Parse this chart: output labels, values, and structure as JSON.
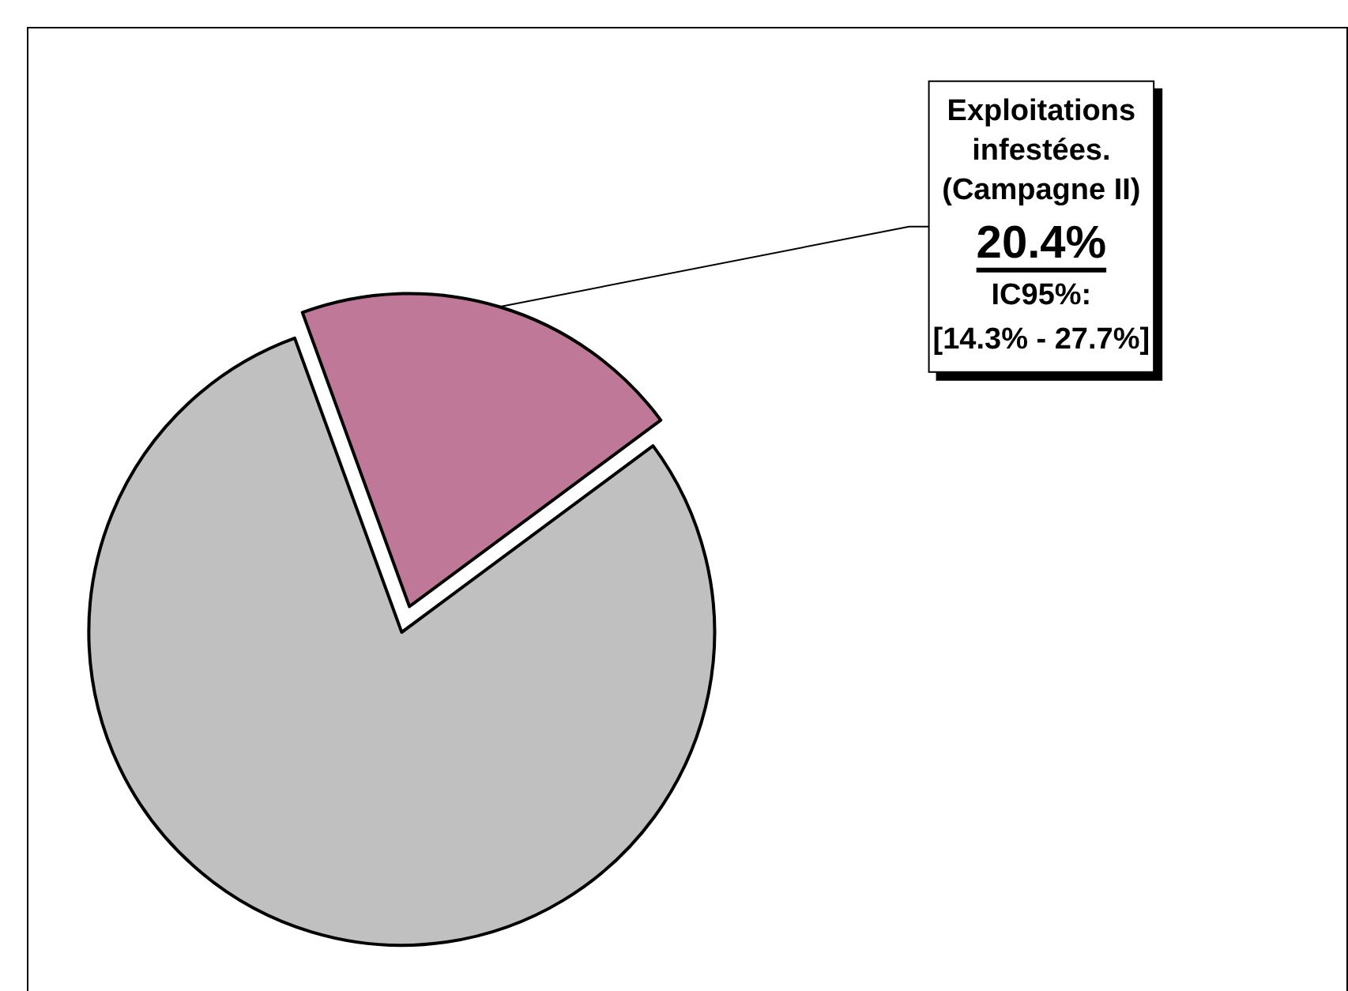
{
  "chart_data": {
    "type": "pie",
    "categories": [
      "Exploitations infestées. (Campagne II)",
      null
    ],
    "values": [
      20.4,
      79.6
    ],
    "colors": [
      "#c07898",
      "#c0c0c0"
    ],
    "value_labels": [
      "20.4%",
      null
    ],
    "annotations": [
      "IC95%:\n[14.3% - 27.7%]"
    ]
  }
}
